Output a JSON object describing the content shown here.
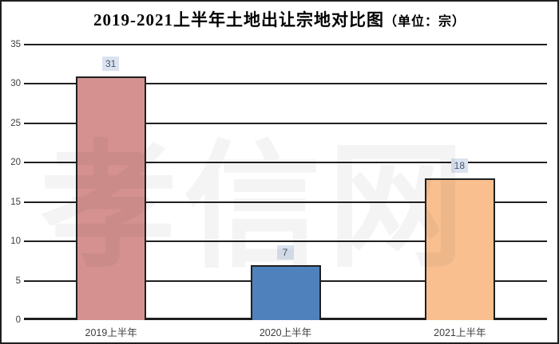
{
  "title": {
    "text": "2019-2021上半年土地出让宗地对比图",
    "unit": "（单位：宗）"
  },
  "watermark": "孝信网",
  "chart_data": {
    "type": "bar",
    "title": "2019-2021上半年土地出让宗地对比图（单位：宗）",
    "categories": [
      "2019上半年",
      "2020上半年",
      "2021上半年"
    ],
    "values": [
      31,
      7,
      18
    ],
    "value_labels": [
      "31",
      "7",
      "18"
    ],
    "bar_colors": [
      "#d4918f",
      "#4f81bd",
      "#f9bf8f"
    ],
    "bar_border_color": "#1f1f1f",
    "value_label_bg": "#dbe3f0",
    "value_label_color": "#44546a",
    "xlabel": "",
    "ylabel": "",
    "ylim": [
      0,
      35
    ],
    "yticks": [
      0,
      5,
      10,
      15,
      20,
      25,
      30,
      35
    ],
    "grid": true,
    "gridline_color": "#1f1f1f",
    "legend": "none"
  }
}
